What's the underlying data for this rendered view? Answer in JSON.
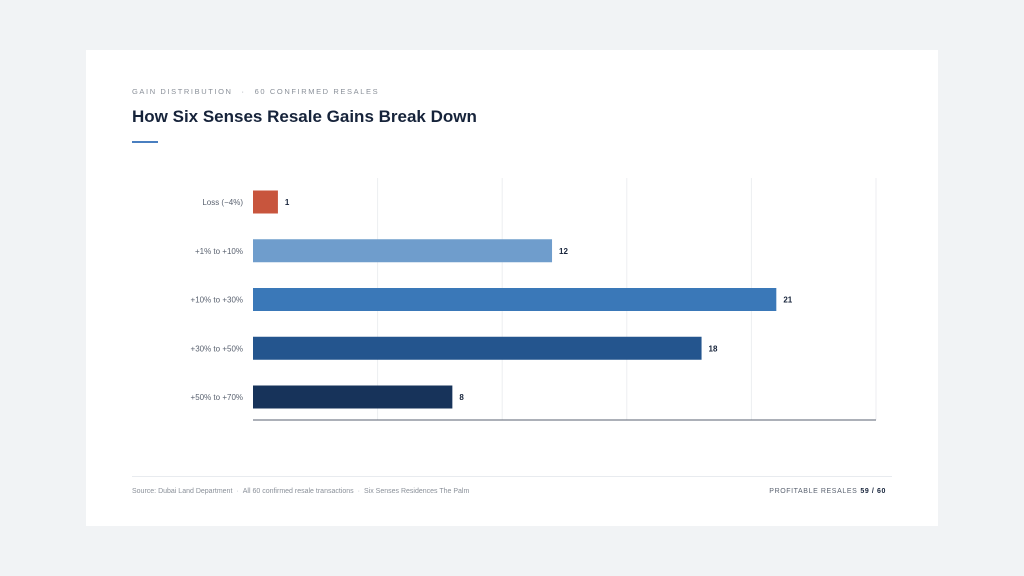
{
  "header": {
    "eyebrow_left": "GAIN DISTRIBUTION",
    "eyebrow_sep": "·",
    "eyebrow_right": "60 CONFIRMED RESALES",
    "title": "How Six Senses Resale Gains Break Down"
  },
  "footer": {
    "source_parts": [
      "Source: Dubai Land Department",
      "All 60 confirmed resale transactions",
      "Six Senses Residences The Palm"
    ],
    "source_sep": "·",
    "right_label": "PROFITABLE RESALES",
    "right_count": "59 / 60"
  },
  "colors": {
    "loss": "#c8553d",
    "band1": "#6f9dcc",
    "band2": "#3a78b8",
    "band3": "#24558e",
    "band4": "#17335a",
    "grid": "#eceef1",
    "axis": "#5a6270"
  },
  "chart_data": {
    "type": "bar",
    "orientation": "horizontal",
    "categories": [
      "Loss (−4%)",
      "+1% to +10%",
      "+10% to +30%",
      "+30% to +50%",
      "+50% to +70%"
    ],
    "values": [
      1,
      12,
      21,
      18,
      8
    ],
    "bar_colors": [
      "#c8553d",
      "#6f9dcc",
      "#3a78b8",
      "#24558e",
      "#17335a"
    ],
    "xlim": [
      0,
      25
    ],
    "xticks": [
      0,
      5,
      10,
      15,
      20,
      25
    ],
    "grid": true,
    "legend": "none"
  }
}
